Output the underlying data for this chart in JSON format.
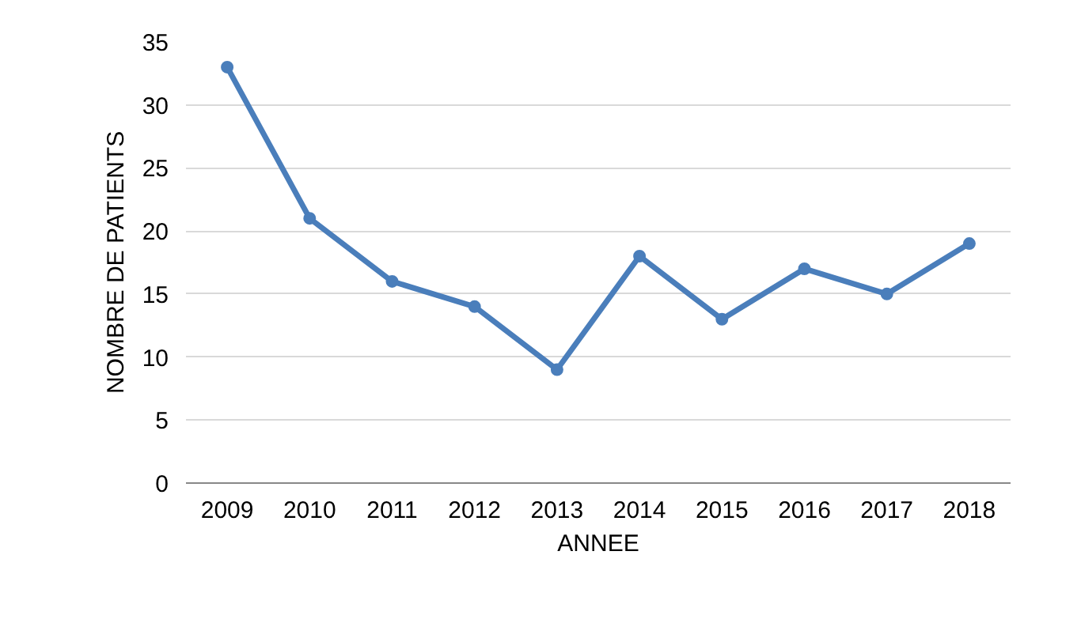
{
  "chart_data": {
    "type": "line",
    "xlabel": "ANNEE",
    "ylabel": "NOMBRE DE PATIENTS",
    "categories": [
      "2009",
      "2010",
      "2011",
      "2012",
      "2013",
      "2014",
      "2015",
      "2016",
      "2017",
      "2018"
    ],
    "series": [
      {
        "color": "#4a7ebb",
        "values": [
          33,
          21,
          16,
          14,
          9,
          18,
          13,
          17,
          15,
          19
        ]
      }
    ],
    "ylim": [
      0,
      35
    ],
    "yticks": [
      0,
      5,
      10,
      15,
      20,
      25,
      30,
      35
    ],
    "grid": "y",
    "marker": "circle",
    "line_style": "solid"
  }
}
